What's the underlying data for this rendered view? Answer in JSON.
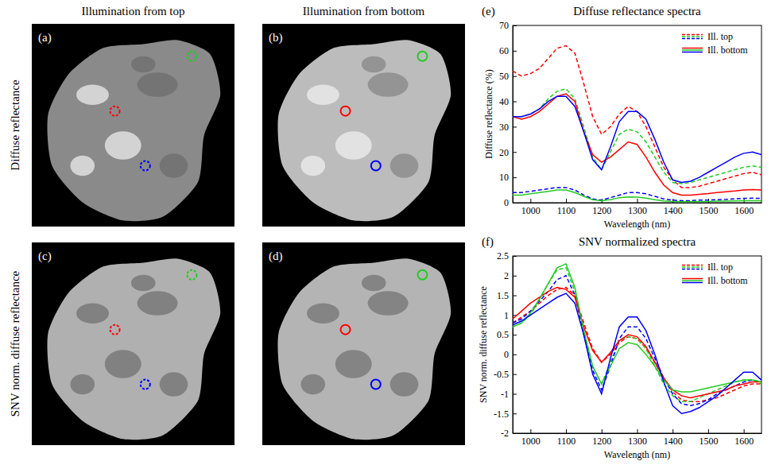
{
  "figure": {
    "column_titles": [
      "Illumination from top",
      "Illumination from bottom"
    ],
    "row_titles": [
      "Diffuse reflectance",
      "SNV norm. diffuse reflectance"
    ],
    "panels": [
      "(a)",
      "(b)",
      "(c)",
      "(d)"
    ]
  },
  "chart_data": [
    {
      "type": "line",
      "panel": "(e)",
      "title": "Diffuse reflectance spectra",
      "x_label": "Wavelength (nm)",
      "y_label": "Diffuse reflectance (%)",
      "x": [
        950,
        975,
        1000,
        1025,
        1050,
        1075,
        1100,
        1125,
        1150,
        1175,
        1200,
        1225,
        1250,
        1275,
        1300,
        1325,
        1350,
        1375,
        1400,
        1425,
        1450,
        1475,
        1500,
        1525,
        1550,
        1575,
        1600,
        1625,
        1650
      ],
      "xlim": [
        950,
        1650
      ],
      "xticks": [
        1000,
        1100,
        1200,
        1300,
        1400,
        1500,
        1600
      ],
      "ylim": [
        0,
        70
      ],
      "yticks": [
        0,
        10,
        20,
        30,
        40,
        50,
        60,
        70
      ],
      "legend": "top-right",
      "series": [
        {
          "name": "Ill. top",
          "color": "#ff0000",
          "line_style": "dashed",
          "values": [
            52,
            50,
            51,
            53,
            57,
            61,
            62,
            59,
            47,
            34,
            27,
            30,
            35,
            38,
            36,
            30,
            22,
            14,
            9,
            6,
            6,
            6.5,
            7.5,
            8.5,
            9.5,
            10.5,
            11.5,
            12,
            11
          ]
        },
        {
          "name": "Ill. top",
          "color": "#22cc22",
          "line_style": "dashed",
          "values": [
            34,
            34,
            35,
            37,
            41,
            44,
            45,
            41,
            30,
            18,
            13,
            20,
            27,
            29,
            28,
            24,
            18,
            12,
            8,
            7.5,
            8,
            9,
            10,
            11,
            12,
            13,
            14,
            14.5,
            14
          ]
        },
        {
          "name": "Ill. top",
          "color": "#0000ff",
          "line_style": "dashed",
          "values": [
            4,
            4,
            4.5,
            5,
            5.5,
            6,
            6,
            5,
            3,
            1.5,
            1,
            2,
            3,
            4,
            4,
            3.5,
            2.5,
            1.5,
            1,
            0.8,
            0.8,
            1,
            1,
            1.2,
            1.3,
            1.5,
            1.7,
            1.8,
            1.7
          ]
        },
        {
          "name": "Ill. bottom",
          "color": "#ff0000",
          "line_style": "solid",
          "values": [
            34,
            33,
            34,
            36,
            39,
            42,
            43,
            40,
            28,
            19,
            16,
            18,
            21,
            24,
            23,
            18,
            12,
            7,
            4,
            3,
            3,
            3.3,
            3.6,
            4,
            4.3,
            4.6,
            5,
            5.2,
            5
          ]
        },
        {
          "name": "Ill. bottom",
          "color": "#22cc22",
          "line_style": "solid",
          "values": [
            3,
            3,
            3.5,
            4,
            4.5,
            5,
            5,
            4,
            2.5,
            1.2,
            0.8,
            1.2,
            2,
            2.3,
            2.2,
            1.8,
            1.2,
            0.7,
            0.5,
            0.4,
            0.4,
            0.5,
            0.5,
            0.6,
            0.6,
            0.7,
            0.8,
            0.8,
            0.8
          ]
        },
        {
          "name": "Ill. bottom",
          "color": "#0000ff",
          "line_style": "solid",
          "values": [
            34,
            34,
            35,
            37,
            40,
            42,
            42,
            38,
            28,
            17,
            13,
            22,
            32,
            36,
            36,
            33,
            25,
            16,
            9,
            8,
            8.5,
            10,
            12,
            14,
            16,
            18,
            19.5,
            20,
            19
          ]
        }
      ]
    },
    {
      "type": "line",
      "panel": "(f)",
      "title": "SNV normalized spectra",
      "x_label": "Wavelength (nm)",
      "y_label": "SNV norm. diffuse reflectance",
      "x": [
        950,
        975,
        1000,
        1025,
        1050,
        1075,
        1100,
        1125,
        1150,
        1175,
        1200,
        1225,
        1250,
        1275,
        1300,
        1325,
        1350,
        1375,
        1400,
        1425,
        1450,
        1475,
        1500,
        1525,
        1550,
        1575,
        1600,
        1625,
        1650
      ],
      "xlim": [
        950,
        1650
      ],
      "xticks": [
        1000,
        1100,
        1200,
        1300,
        1400,
        1500,
        1600
      ],
      "ylim": [
        -2,
        2.5
      ],
      "yticks": [
        -2,
        -1.5,
        -1,
        -0.5,
        0,
        0.5,
        1,
        1.5,
        2,
        2.5
      ],
      "legend": "top-right",
      "series": [
        {
          "name": "Ill. top",
          "color": "#ff0000",
          "line_style": "dashed",
          "values": [
            0.8,
            0.95,
            1.1,
            1.3,
            1.5,
            1.65,
            1.7,
            1.5,
            0.8,
            0.15,
            -0.2,
            0,
            0.3,
            0.45,
            0.4,
            0.15,
            -0.2,
            -0.6,
            -0.95,
            -1.15,
            -1.2,
            -1.2,
            -1.15,
            -1.1,
            -1,
            -0.9,
            -0.8,
            -0.75,
            -0.75
          ]
        },
        {
          "name": "Ill. top",
          "color": "#22cc22",
          "line_style": "dashed",
          "values": [
            0.7,
            0.8,
            1,
            1.4,
            1.8,
            2.15,
            2.2,
            1.6,
            0.6,
            -0.3,
            -0.75,
            -0.2,
            0.35,
            0.45,
            0.4,
            0.15,
            -0.3,
            -0.75,
            -1.05,
            -1.2,
            -1.2,
            -1.1,
            -1,
            -0.9,
            -0.8,
            -0.7,
            -0.65,
            -0.65,
            -0.75
          ]
        },
        {
          "name": "Ill. top",
          "color": "#0000ff",
          "line_style": "dashed",
          "values": [
            0.8,
            0.9,
            1.1,
            1.35,
            1.6,
            1.9,
            2,
            1.5,
            0.5,
            -0.4,
            -0.9,
            -0.3,
            0.4,
            0.7,
            0.7,
            0.4,
            -0.1,
            -0.6,
            -1,
            -1.25,
            -1.3,
            -1.25,
            -1.15,
            -1,
            -0.9,
            -0.8,
            -0.7,
            -0.65,
            -0.7
          ]
        },
        {
          "name": "Ill. bottom",
          "color": "#ff0000",
          "line_style": "solid",
          "values": [
            0.9,
            1.1,
            1.3,
            1.45,
            1.6,
            1.7,
            1.65,
            1.45,
            0.7,
            0.1,
            -0.2,
            0.05,
            0.35,
            0.5,
            0.45,
            0.2,
            -0.2,
            -0.6,
            -0.9,
            -1.05,
            -1.1,
            -1.05,
            -1,
            -0.95,
            -0.9,
            -0.8,
            -0.75,
            -0.7,
            -0.7
          ]
        },
        {
          "name": "Ill. bottom",
          "color": "#22cc22",
          "line_style": "solid",
          "values": [
            0.7,
            0.8,
            1.05,
            1.4,
            1.8,
            2.2,
            2.3,
            1.7,
            0.6,
            -0.3,
            -0.75,
            -0.3,
            0.15,
            0.3,
            0.25,
            0,
            -0.3,
            -0.65,
            -0.9,
            -0.95,
            -0.95,
            -0.9,
            -0.85,
            -0.8,
            -0.75,
            -0.7,
            -0.65,
            -0.65,
            -0.7
          ]
        },
        {
          "name": "Ill. bottom",
          "color": "#0000ff",
          "line_style": "solid",
          "values": [
            0.75,
            0.85,
            1,
            1.15,
            1.3,
            1.45,
            1.55,
            1.3,
            0.5,
            -0.5,
            -1,
            -0.1,
            0.7,
            0.95,
            0.95,
            0.6,
            0,
            -0.7,
            -1.3,
            -1.5,
            -1.45,
            -1.35,
            -1.2,
            -1.05,
            -0.85,
            -0.65,
            -0.45,
            -0.45,
            -0.65
          ]
        }
      ]
    }
  ]
}
